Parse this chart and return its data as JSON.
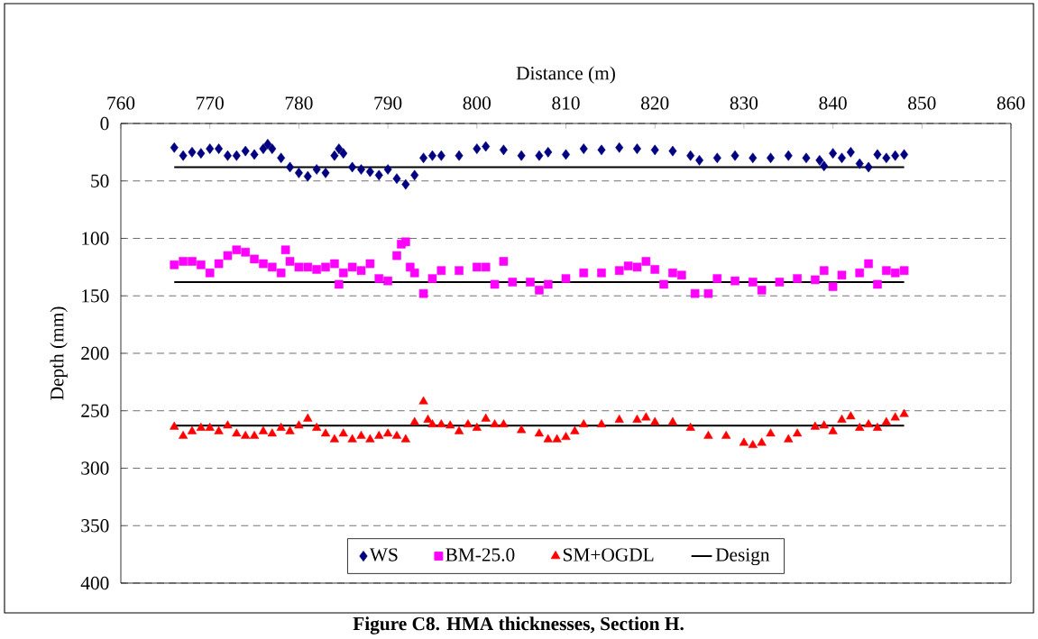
{
  "chart_data": {
    "type": "scatter",
    "title": "Figure C8. HMA thicknesses, Section H.",
    "xlabel": "Distance (m)",
    "ylabel": "Depth (mm)",
    "xlim": [
      760,
      860
    ],
    "xticks": [
      760,
      770,
      780,
      790,
      800,
      810,
      820,
      830,
      840,
      850,
      860
    ],
    "ylim": [
      400,
      0
    ],
    "yticks": [
      0,
      50,
      100,
      150,
      200,
      250,
      300,
      350,
      400
    ],
    "grid": "y",
    "legend": "bottom",
    "series": [
      {
        "name": "WS",
        "color": "#000080",
        "marker": "diamond",
        "x": [
          766,
          767,
          768,
          769,
          770,
          771,
          772,
          773,
          774,
          775,
          776,
          776.5,
          777,
          778,
          779,
          780,
          781,
          782,
          783,
          784,
          784.5,
          785,
          786,
          787,
          788,
          789,
          790,
          791,
          792,
          793,
          794,
          795,
          796,
          798,
          800,
          801,
          803,
          805,
          807,
          808,
          810,
          812,
          814,
          816,
          818,
          820,
          822,
          824,
          825,
          827,
          829,
          831,
          833,
          835,
          837,
          838.5,
          839,
          840,
          841,
          842,
          843,
          844,
          845,
          846,
          847,
          848
        ],
        "values": [
          21,
          28,
          25,
          26,
          22,
          22,
          28,
          28,
          24,
          27,
          22,
          18,
          22,
          30,
          38,
          43,
          46,
          40,
          43,
          28,
          22,
          26,
          38,
          40,
          42,
          45,
          40,
          48,
          53,
          45,
          30,
          28,
          28,
          28,
          22,
          20,
          23,
          28,
          28,
          25,
          27,
          22,
          23,
          21,
          22,
          23,
          24,
          28,
          32,
          30,
          28,
          30,
          30,
          28,
          30,
          32,
          37,
          26,
          30,
          25,
          35,
          38,
          27,
          30,
          28,
          27
        ]
      },
      {
        "name": "BM-25.0",
        "color": "#ff00ff",
        "marker": "square",
        "x": [
          766,
          767,
          768,
          769,
          770,
          771,
          772,
          773,
          774,
          775,
          776,
          777,
          778,
          778.5,
          779,
          780,
          781,
          782,
          783,
          784,
          784.5,
          785,
          786,
          787,
          788,
          789,
          790,
          791,
          791.5,
          792,
          792.5,
          793,
          794,
          795,
          796,
          798,
          800,
          801,
          802,
          803,
          804,
          806,
          807,
          808,
          810,
          812,
          814,
          816,
          817,
          818,
          819,
          820,
          821,
          822,
          823,
          824.5,
          826,
          827,
          829,
          831,
          832,
          834,
          836,
          838,
          839,
          840,
          841,
          843,
          844,
          845,
          846,
          847,
          848
        ],
        "values": [
          123,
          120,
          120,
          123,
          130,
          122,
          115,
          110,
          112,
          118,
          122,
          125,
          130,
          110,
          120,
          125,
          125,
          127,
          125,
          122,
          140,
          130,
          125,
          128,
          122,
          135,
          137,
          115,
          105,
          103,
          125,
          130,
          148,
          135,
          128,
          128,
          125,
          125,
          140,
          120,
          138,
          138,
          145,
          140,
          135,
          130,
          130,
          128,
          124,
          125,
          120,
          127,
          140,
          130,
          132,
          148,
          148,
          135,
          137,
          138,
          145,
          138,
          135,
          136,
          128,
          142,
          132,
          130,
          122,
          140,
          128,
          130,
          128
        ]
      },
      {
        "name": "SM+OGDL",
        "color": "#ff0000",
        "marker": "triangle",
        "x": [
          766,
          767,
          768,
          769,
          770,
          771,
          772,
          773,
          774,
          775,
          776,
          777,
          778,
          779,
          780,
          781,
          782,
          783,
          784,
          785,
          786,
          787,
          788,
          789,
          790,
          791,
          792,
          793,
          794,
          794.5,
          795,
          796,
          797,
          798,
          799,
          800,
          801,
          802,
          803,
          805,
          807,
          808,
          809,
          810,
          811,
          812,
          814,
          816,
          818,
          819,
          820,
          822,
          824,
          826,
          828,
          830,
          831,
          832,
          833,
          835,
          836,
          838,
          839,
          840,
          841,
          842,
          843,
          844,
          845,
          846,
          847,
          848
        ],
        "values": [
          264,
          272,
          268,
          265,
          265,
          268,
          263,
          270,
          272,
          272,
          268,
          270,
          265,
          268,
          263,
          257,
          265,
          270,
          275,
          270,
          275,
          272,
          275,
          272,
          270,
          272,
          275,
          260,
          242,
          258,
          262,
          262,
          263,
          268,
          262,
          265,
          257,
          262,
          262,
          267,
          270,
          275,
          275,
          273,
          268,
          262,
          262,
          258,
          258,
          256,
          260,
          260,
          265,
          272,
          272,
          278,
          280,
          278,
          270,
          275,
          270,
          264,
          263,
          268,
          258,
          255,
          265,
          262,
          265,
          260,
          256,
          253
        ]
      },
      {
        "name": "Design",
        "color": "#000000",
        "type": "line",
        "marker": "none",
        "x": [
          766,
          848
        ],
        "values": [
          38,
          38
        ]
      },
      {
        "color": "#000000",
        "type": "line",
        "marker": "none",
        "x": [
          766,
          848
        ],
        "values": [
          138,
          138
        ]
      },
      {
        "color": "#000000",
        "type": "line",
        "marker": "none",
        "x": [
          766,
          848
        ],
        "values": [
          263,
          263
        ]
      }
    ]
  }
}
